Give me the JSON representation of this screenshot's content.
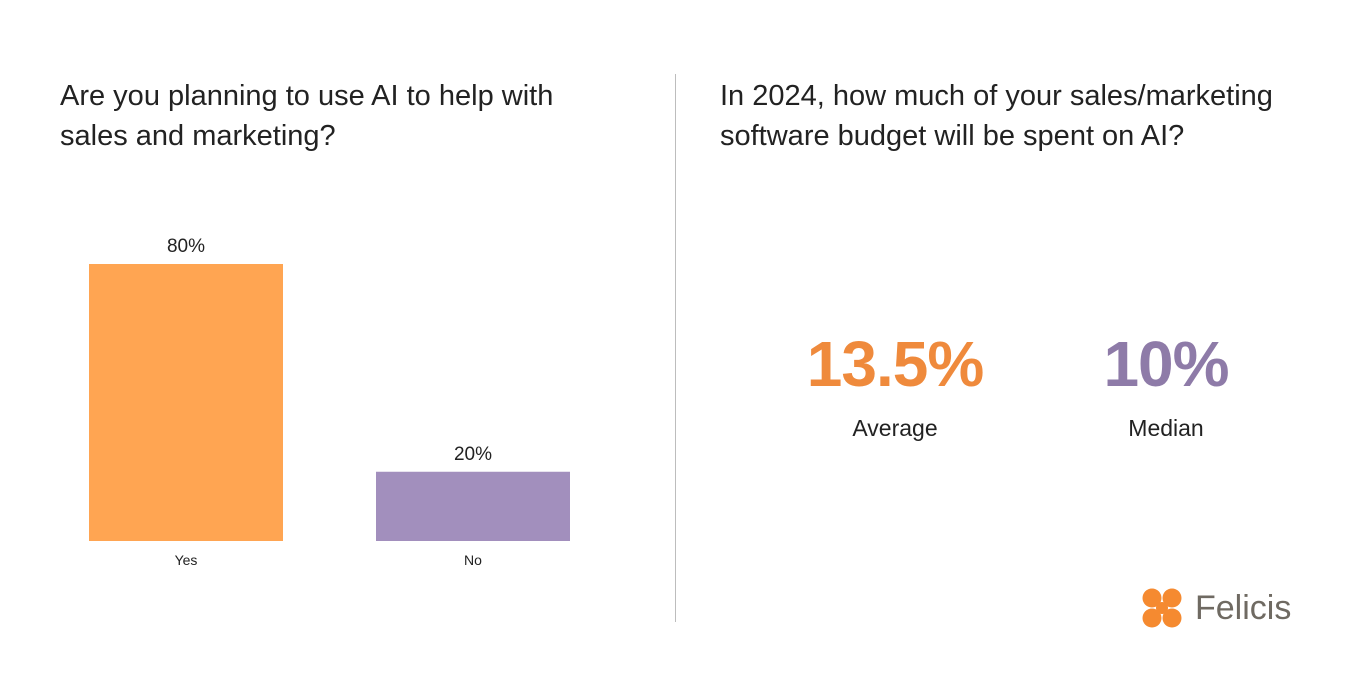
{
  "left_panel": {
    "question": "Are you planning to use AI to help with sales and marketing?"
  },
  "right_panel": {
    "question": "In 2024, how much of your sales/marketing software budget will be spent on AI?",
    "stats": [
      {
        "value": "13.5%",
        "label": "Average",
        "color": "#ef8a3c"
      },
      {
        "value": "10%",
        "label": "Median",
        "color": "#8e7ba8"
      }
    ]
  },
  "chart_data": {
    "type": "bar",
    "title": "Are you planning to use AI to help with sales and marketing?",
    "categories": [
      "Yes",
      "No"
    ],
    "values": [
      80,
      20
    ],
    "value_labels": [
      "80%",
      "20%"
    ],
    "colors": [
      "#ffa552",
      "#a28fbd"
    ],
    "xlabel": "",
    "ylabel": "",
    "ylim": [
      0,
      80
    ],
    "grid": false,
    "legend": "none"
  },
  "brand": {
    "name": "Felicis",
    "icon": "clover-logo-icon",
    "color": "#f58a30"
  }
}
